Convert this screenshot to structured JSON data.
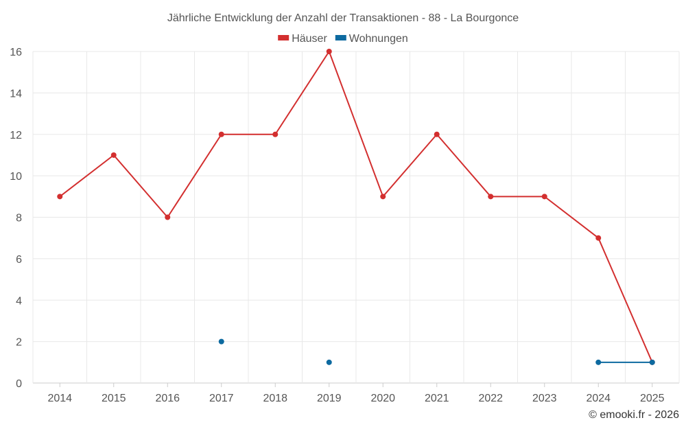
{
  "chart_data": {
    "type": "line",
    "title": "Jährliche Entwicklung der Anzahl der Transaktionen - 88 - La Bourgonce",
    "categories": [
      "2014",
      "2015",
      "2016",
      "2017",
      "2018",
      "2019",
      "2020",
      "2021",
      "2022",
      "2023",
      "2024",
      "2025"
    ],
    "series": [
      {
        "name": "Häuser",
        "color": "#d32f2f",
        "values": [
          9,
          11,
          8,
          12,
          12,
          16,
          9,
          12,
          9,
          9,
          7,
          1
        ]
      },
      {
        "name": "Wohnungen",
        "color": "#0d6aa0",
        "values": [
          null,
          null,
          null,
          2,
          null,
          1,
          null,
          null,
          null,
          null,
          1,
          1
        ]
      }
    ],
    "ylim": [
      0,
      16
    ],
    "yticks": [
      0,
      2,
      4,
      6,
      8,
      10,
      12,
      14,
      16
    ],
    "grid": true,
    "legend_position": "top-center"
  },
  "credit": "© emooki.fr - 2026"
}
